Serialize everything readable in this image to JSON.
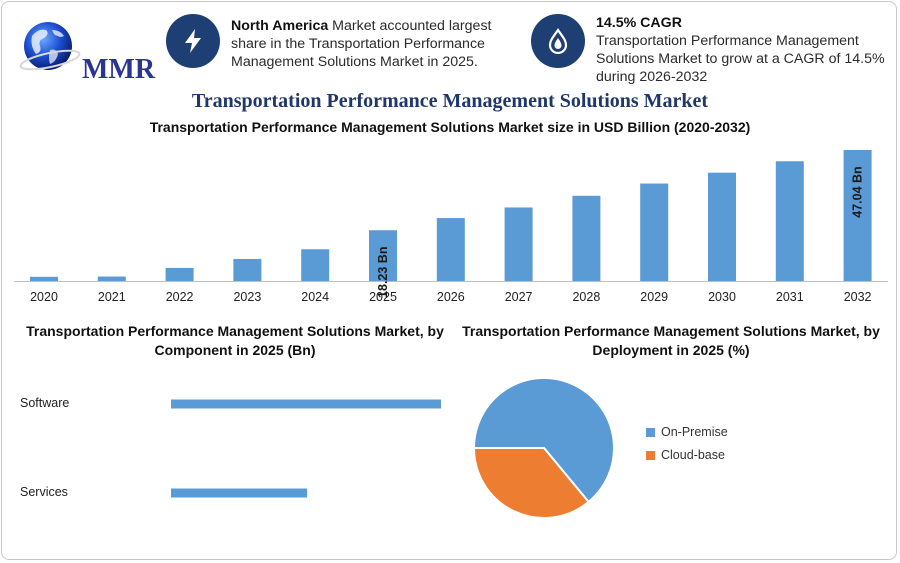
{
  "logo": {
    "text": "MMR"
  },
  "info": {
    "region": {
      "icon": "lightning-icon",
      "highlight": "North America",
      "text": " Market accounted largest share in the Transportation Performance Management Solutions Market in 2025."
    },
    "cagr": {
      "icon": "drop-icon",
      "highlight": "14.5% CAGR",
      "text": "Transportation Performance Management Solutions Market to grow at a CAGR of 14.5% during 2026-2032"
    }
  },
  "colors": {
    "blue": "#5b9bd5",
    "orange": "#ed7d31",
    "navy": "#1e3f73"
  },
  "chart_data": [
    {
      "type": "bar",
      "title": "Transportation Performance Management Solutions Market",
      "subtitle": "Transportation Performance Management Solutions Market size in USD Billion (2020-2032)",
      "categories": [
        "2020",
        "2021",
        "2022",
        "2023",
        "2024",
        "2025",
        "2026",
        "2027",
        "2028",
        "2029",
        "2030",
        "2031",
        "2032"
      ],
      "values": [
        1.5,
        1.6,
        4.7,
        7.9,
        11.4,
        18.23,
        22.6,
        26.4,
        30.6,
        35.0,
        38.9,
        43.0,
        47.04
      ],
      "data_labels": [
        {
          "index": 5,
          "text": "18.23 Bn"
        },
        {
          "index": 12,
          "text": "47.04 Bn"
        }
      ],
      "ylim": [
        0,
        47.04
      ],
      "grid": false
    },
    {
      "type": "bar",
      "orientation": "horizontal",
      "title": "Transportation Performance Management Solutions Market, by Component in 2025 (Bn)",
      "categories": [
        "Software",
        "Services"
      ],
      "values": [
        12.1,
        6.1
      ],
      "xlim": [
        0,
        12.1
      ]
    },
    {
      "type": "pie",
      "title": "Transportation Performance Management Solutions Market, by Deployment in 2025 (%)",
      "labels": [
        "On-Premise",
        "Cloud-base"
      ],
      "values": [
        64,
        36
      ],
      "legend": "right"
    }
  ]
}
